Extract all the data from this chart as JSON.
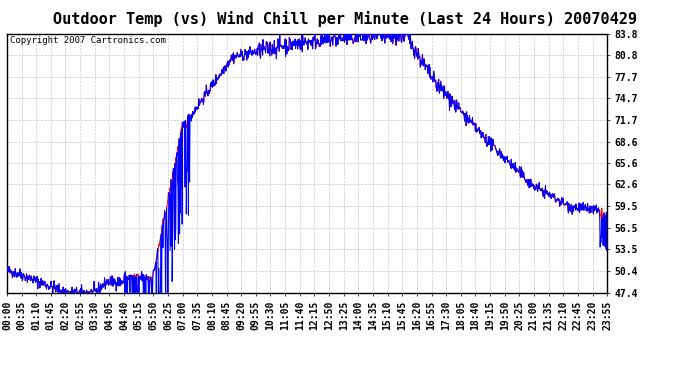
{
  "title": "Outdoor Temp (vs) Wind Chill per Minute (Last 24 Hours) 20070429",
  "copyright_text": "Copyright 2007 Cartronics.com",
  "yticks": [
    47.4,
    50.4,
    53.5,
    56.5,
    59.5,
    62.6,
    65.6,
    68.6,
    71.7,
    74.7,
    77.7,
    80.8,
    83.8
  ],
  "xtick_labels": [
    "00:00",
    "00:35",
    "01:10",
    "01:45",
    "02:20",
    "02:55",
    "03:30",
    "04:05",
    "04:40",
    "05:15",
    "05:50",
    "06:25",
    "07:00",
    "07:35",
    "08:10",
    "08:45",
    "09:20",
    "09:55",
    "10:30",
    "11:05",
    "11:40",
    "12:15",
    "12:50",
    "13:25",
    "14:00",
    "14:35",
    "15:10",
    "15:45",
    "16:20",
    "16:55",
    "17:30",
    "18:05",
    "18:40",
    "19:15",
    "19:50",
    "20:25",
    "21:00",
    "21:35",
    "22:10",
    "22:45",
    "23:20",
    "23:55"
  ],
  "ymin": 47.4,
  "ymax": 83.8,
  "background_color": "#ffffff",
  "plot_bg_color": "#ffffff",
  "grid_color": "#c8c8c8",
  "line_color_red": "#ff0000",
  "line_color_blue": "#0000ff",
  "title_fontsize": 11,
  "copyright_fontsize": 6.5,
  "tick_fontsize": 7
}
